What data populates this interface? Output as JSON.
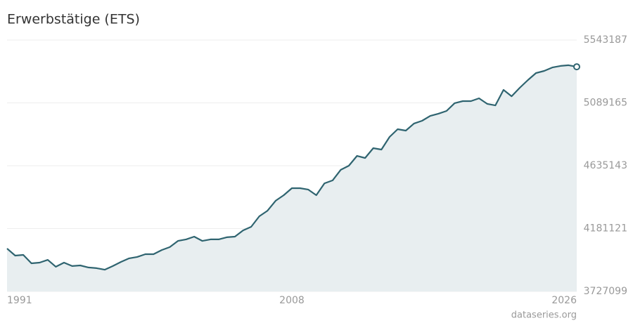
{
  "chart_data": {
    "type": "area-line",
    "title": "Erwerbstätige (ETS)",
    "source": "dataseries.org",
    "categories": [
      "1991",
      null,
      null,
      null,
      null,
      null,
      null,
      null,
      null,
      null,
      null,
      null,
      null,
      null,
      null,
      null,
      null,
      null,
      null,
      null,
      null,
      null,
      null,
      null,
      null,
      null,
      null,
      null,
      null,
      null,
      null,
      null,
      null,
      null,
      null,
      "2008",
      null,
      null,
      null,
      null,
      null,
      null,
      null,
      null,
      null,
      null,
      null,
      null,
      null,
      null,
      null,
      null,
      null,
      null,
      null,
      null,
      null,
      null,
      null,
      null,
      null,
      null,
      null,
      null,
      null,
      null,
      null,
      null,
      null,
      null,
      "2026"
    ],
    "values": [
      4037000,
      3986000,
      3991000,
      3930000,
      3935000,
      3955000,
      3905000,
      3935000,
      3910000,
      3915000,
      3900000,
      3895000,
      3884000,
      3910000,
      3940000,
      3966000,
      3976000,
      3996000,
      3996000,
      4026000,
      4047000,
      4092000,
      4103000,
      4123000,
      4092000,
      4103000,
      4103000,
      4118000,
      4123000,
      4168000,
      4194000,
      4270000,
      4310000,
      4382000,
      4422000,
      4473000,
      4473000,
      4463000,
      4422000,
      4508000,
      4529000,
      4605000,
      4635000,
      4706000,
      4691000,
      4762000,
      4752000,
      4843000,
      4899000,
      4889000,
      4940000,
      4960000,
      4995000,
      5011000,
      5031000,
      5087000,
      5102000,
      5102000,
      5122000,
      5082000,
      5071000,
      5183000,
      5137000,
      5198000,
      5254000,
      5305000,
      5320000,
      5345000,
      5356000,
      5361000,
      5350000
    ],
    "color": "#2f6470",
    "fill": "#e8eef0",
    "ylim": [
      3727099,
      5543187
    ],
    "yticks": [
      3727099,
      4181121,
      4635143,
      5089165,
      5543187
    ],
    "grid": true
  }
}
